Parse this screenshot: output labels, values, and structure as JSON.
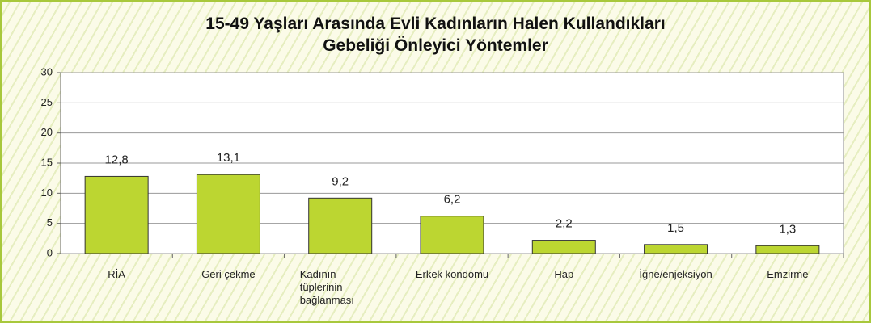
{
  "chart_data": {
    "type": "bar",
    "title": "15-49 Yaşları Arasında Evli Kadınların Halen Kullandıkları\nGebeliği Önleyici Yöntemler",
    "categories": [
      "RİA",
      "Geri çekme",
      "Kadının\ntüplerinin\nbağlanması",
      "Erkek kondomu",
      "Hap",
      "İğne/enjeksiyon",
      "Emzirme"
    ],
    "values": [
      12.8,
      13.1,
      9.2,
      6.2,
      2.2,
      1.5,
      1.3
    ],
    "value_labels": [
      "12,8",
      "13,1",
      "9,2",
      "6,2",
      "2,2",
      "1,5",
      "1,3"
    ],
    "color": "#bcd631",
    "ylim": [
      0,
      30
    ],
    "yticks": [
      0,
      5,
      10,
      15,
      20,
      25,
      30
    ],
    "grid": true
  }
}
